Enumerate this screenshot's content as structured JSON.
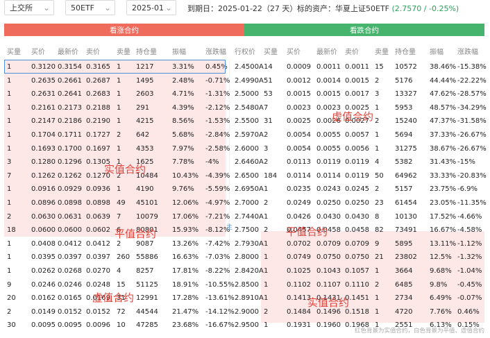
{
  "filters": {
    "exchange": "上交所",
    "underlying": "50ETF",
    "month": "2025-01"
  },
  "info": {
    "expiry_label": "到期日：",
    "expiry_date": "2025-01-22",
    "days": "（27 天）",
    "asset_label": "标的资产：华夏上证50ETF",
    "asset_price": "(2.7570 / -0.25%)"
  },
  "sections": {
    "call": "看涨合约",
    "put": "看跌合约"
  },
  "call_headers": [
    "买量",
    "买价",
    "最新价",
    "卖价",
    "卖量",
    "持仓量",
    "振幅",
    "涨跌幅"
  ],
  "put_headers": [
    "行权价",
    "买量",
    "买价",
    "最新价",
    "卖价",
    "卖量",
    "持仓量",
    "振幅",
    "涨跌幅"
  ],
  "rows": [
    {
      "c": [
        "1",
        "0.3120",
        "0.3154",
        "0.3165",
        "1",
        "1217",
        "3.31%",
        "0.45%"
      ],
      "cs": "up",
      "k": "2.4500A",
      "p": [
        "14",
        "0.0009",
        "0.0011",
        "0.0011",
        "15",
        "10572",
        "38.46%",
        "-15.38%"
      ],
      "ps": "down"
    },
    {
      "c": [
        "1",
        "0.2635",
        "0.2661",
        "0.2687",
        "1",
        "1495",
        "2.48%",
        "-0.71%"
      ],
      "cs": "down",
      "k": "2.4990A",
      "p": [
        "51",
        "0.0012",
        "0.0014",
        "0.0015",
        "2",
        "5176",
        "44.44%",
        "-22.22%"
      ],
      "ps": "down"
    },
    {
      "c": [
        "1",
        "0.2631",
        "0.2641",
        "0.2683",
        "1",
        "2603",
        "4.71%",
        "-1.31%"
      ],
      "cs": "down",
      "k": "2.5000",
      "p": [
        "53",
        "0.0015",
        "0.0015",
        "0.0017",
        "3",
        "13327",
        "47.62%",
        "-28.57%"
      ],
      "ps": "down"
    },
    {
      "c": [
        "1",
        "0.2161",
        "0.2173",
        "0.2188",
        "1",
        "291",
        "4.39%",
        "-2.12%"
      ],
      "cs": "down",
      "k": "2.5480A",
      "p": [
        "7",
        "0.0023",
        "0.0023",
        "0.0025",
        "1",
        "5953",
        "48.57%",
        "-34.29%"
      ],
      "ps": "down"
    },
    {
      "c": [
        "1",
        "0.2147",
        "0.2186",
        "0.2190",
        "1",
        "4215",
        "8.56%",
        "-1.53%"
      ],
      "cs": "down",
      "k": "2.5500",
      "p": [
        "31",
        "0.0025",
        "0.0026",
        "0.0027",
        "2",
        "15240",
        "47.37%",
        "-31.58%"
      ],
      "ps": "down"
    },
    {
      "c": [
        "1",
        "0.1704",
        "0.1711",
        "0.1727",
        "2",
        "642",
        "5.68%",
        "-2.84%"
      ],
      "cs": "down",
      "k": "2.5970A",
      "p": [
        "2",
        "0.0054",
        "0.0055",
        "0.0057",
        "1",
        "5694",
        "37.33%",
        "-26.67%"
      ],
      "ps": "down"
    },
    {
      "c": [
        "1",
        "0.1693",
        "0.1700",
        "0.1697",
        "1",
        "4353",
        "7.97%",
        "-2.58%"
      ],
      "cs": "down",
      "k": "2.6000",
      "p": [
        "3",
        "0.0054",
        "0.0055",
        "0.0056",
        "1",
        "31275",
        "38.67%",
        "-26.67%"
      ],
      "ps": "down"
    },
    {
      "c": [
        "3",
        "0.1280",
        "0.1296",
        "0.1305",
        "1",
        "1625",
        "7.78%",
        "-4%"
      ],
      "cs": "down",
      "k": "2.6460A",
      "p": [
        "2",
        "0.0113",
        "0.0119",
        "0.0119",
        "4",
        "5382",
        "31.43%",
        "-15%"
      ],
      "ps": "down"
    },
    {
      "c": [
        "7",
        "0.1262",
        "0.1262",
        "0.1270",
        "2",
        "10484",
        "10.43%",
        "-4.39%"
      ],
      "cs": "down",
      "k": "2.6500",
      "p": [
        "184",
        "0.0114",
        "0.0114",
        "0.0119",
        "50",
        "64962",
        "33.33%",
        "-20.83%"
      ],
      "ps": "down"
    },
    {
      "c": [
        "1",
        "0.0916",
        "0.0929",
        "0.0936",
        "1",
        "4190",
        "9.76%",
        "-5.59%"
      ],
      "cs": "down",
      "k": "2.6950A",
      "p": [
        "1",
        "0.0235",
        "0.0243",
        "0.0245",
        "2",
        "5157",
        "23.75%",
        "-6.9%"
      ],
      "ps": "down"
    },
    {
      "c": [
        "1",
        "0.0896",
        "0.0898",
        "0.0898",
        "49",
        "45101",
        "12.06%",
        "-4.97%"
      ],
      "cs": "down",
      "k": "2.7000",
      "p": [
        "2",
        "0.0249",
        "0.0250",
        "0.0250",
        "23",
        "61454",
        "23.05%",
        "-11.35%"
      ],
      "ps": "down"
    },
    {
      "c": [
        "2",
        "0.0630",
        "0.0631",
        "0.0639",
        "7",
        "10079",
        "17.06%",
        "-7.21%"
      ],
      "cs": "down",
      "k": "2.7440A",
      "p": [
        "1",
        "0.0426",
        "0.0430",
        "0.0430",
        "8",
        "10130",
        "17.52%",
        "-4.66%"
      ],
      "ps": "down"
    },
    {
      "c": [
        "18",
        "0.0600",
        "0.0600",
        "0.0602",
        "6",
        "80801",
        "15.93%",
        "-8.12%"
      ],
      "cs": "down",
      "k": "2.7500",
      "p": [
        "2",
        "0.0457",
        "0.0458",
        "0.0458",
        "82",
        "73491",
        "16.67%",
        "-4.58%"
      ],
      "ps": "down"
    },
    {
      "c": [
        "1",
        "0.0408",
        "0.0412",
        "0.0412",
        "2",
        "9087",
        "13.26%",
        "-7.42%"
      ],
      "cs": "down",
      "k": "2.7930A",
      "p": [
        "1",
        "0.0702",
        "0.0709",
        "0.0709",
        "9",
        "5895",
        "13.11%",
        "-1.12%"
      ],
      "ps": "down"
    },
    {
      "c": [
        "1",
        "0.0395",
        "0.0397",
        "0.0397",
        "260",
        "55886",
        "16.63%",
        "-7.03%"
      ],
      "cs": "down",
      "k": "2.8000",
      "p": [
        "1",
        "0.0749",
        "0.0750",
        "0.0750",
        "21",
        "23802",
        "12.5%",
        "-1.32%"
      ],
      "ps": "down"
    },
    {
      "c": [
        "1",
        "0.0262",
        "0.0268",
        "0.0270",
        "4",
        "8257",
        "17.81%",
        "-8.22%"
      ],
      "cs": "down",
      "k": "2.8420A",
      "p": [
        "1",
        "0.1025",
        "0.1043",
        "0.1057",
        "1",
        "3664",
        "9.68%",
        "-1.04%"
      ],
      "ps": "down"
    },
    {
      "c": [
        "9",
        "0.0246",
        "0.0246",
        "0.0248",
        "15",
        "51125",
        "18.91%",
        "-10.55%"
      ],
      "cs": "down",
      "k": "2.8500",
      "p": [
        "1",
        "0.1102",
        "0.1107",
        "0.1110",
        "2",
        "6485",
        "9.8%",
        "-0.45%"
      ],
      "ps": "down"
    },
    {
      "c": [
        "20",
        "0.0162",
        "0.0165",
        "0.0169",
        "31",
        "12991",
        "17.28%",
        "-13.61%"
      ],
      "cs": "down",
      "k": "2.8910A",
      "p": [
        "1",
        "0.1413",
        "0.1431",
        "0.1451",
        "1",
        "2734",
        "6.49%",
        "-0.07%"
      ],
      "ps": "down"
    },
    {
      "c": [
        "2",
        "0.0149",
        "0.0152",
        "0.0152",
        "72",
        "44544",
        "21.47%",
        "-14.12%"
      ],
      "cs": "down",
      "k": "2.9000",
      "p": [
        "2",
        "0.1484",
        "0.1496",
        "0.1518",
        "1",
        "4720",
        "7.76%",
        "0.46%"
      ],
      "ps": "up"
    },
    {
      "c": [
        "30",
        "0.0095",
        "0.0095",
        "0.0096",
        "10",
        "47285",
        "23.68%",
        "-16.67%"
      ],
      "cs": "down",
      "k": "2.9500",
      "p": [
        "1",
        "0.1931",
        "0.1960",
        "0.1968",
        "1",
        "2551",
        "6.13%",
        "0.15%"
      ],
      "ps": "up"
    }
  ],
  "watermarks": {
    "call_itm": "实值合约",
    "call_atm": "平值合约",
    "call_otm": "虚值合约",
    "put_otm": "虚值合约",
    "put_atm": "平值合约",
    "put_itm": "实值合约",
    "atm_marker": "主"
  },
  "footer": "红色背景为实值合约，白色背景为平值、虚值合约",
  "colors": {
    "call_bar": "#ef6b5b",
    "put_bar": "#47b46e",
    "itm_bg": "#fde7e7",
    "up": "#e0443b",
    "down": "#1a9a47",
    "selected_border": "#4a90d9"
  }
}
